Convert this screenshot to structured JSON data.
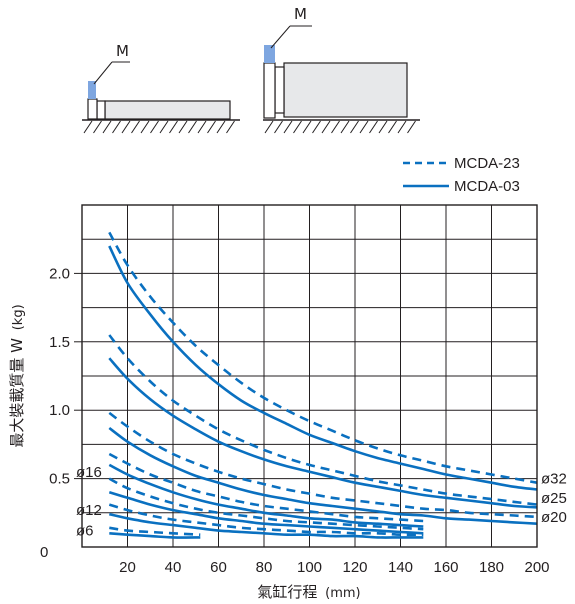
{
  "diagram": {
    "marker_label": "M",
    "colors": {
      "mass": "#7ea6e0",
      "body": "#e7e8ea",
      "outline": "#231f20"
    }
  },
  "chart_data": {
    "type": "line",
    "xlabel": "氣缸行程",
    "xlabel_unit": "(mm)",
    "ylabel": "最大裝載質量 W",
    "ylabel_unit": "(kg)",
    "xlim": [
      0,
      200
    ],
    "ylim": [
      0,
      2.5
    ],
    "x_ticks": [
      20,
      40,
      60,
      80,
      100,
      120,
      140,
      160,
      180,
      200
    ],
    "y_ticks": [
      {
        "value": 0,
        "label": "0"
      },
      {
        "value": 0.5,
        "label": "0.5"
      },
      {
        "value": 1.0,
        "label": "1.0"
      },
      {
        "value": 1.5,
        "label": "1.5"
      },
      {
        "value": 2.0,
        "label": "2.0"
      }
    ],
    "grid": true,
    "legend_position": "top-right",
    "legend": [
      {
        "label": "MCDA-23",
        "style": "dashed"
      },
      {
        "label": "MCDA-03",
        "style": "solid"
      }
    ],
    "line_color": "#0a70c0",
    "bore_labels": [
      {
        "label": "ø32",
        "side": "right",
        "y": 0.5
      },
      {
        "label": "ø25",
        "side": "right",
        "y": 0.36
      },
      {
        "label": "ø20",
        "side": "right",
        "y": 0.22
      },
      {
        "label": "ø16",
        "side": "left",
        "y": 0.55
      },
      {
        "label": "ø12",
        "side": "left",
        "y": 0.27
      },
      {
        "label": "ø6",
        "side": "left",
        "y": 0.12
      }
    ],
    "series": [
      {
        "style": "solid",
        "x": [
          12,
          20,
          30,
          40,
          50,
          60,
          70,
          80,
          90,
          100,
          110,
          120,
          130,
          140,
          150,
          160,
          170,
          180,
          190,
          200
        ],
        "y": [
          2.2,
          1.93,
          1.7,
          1.5,
          1.33,
          1.19,
          1.07,
          0.98,
          0.9,
          0.82,
          0.76,
          0.7,
          0.65,
          0.61,
          0.57,
          0.53,
          0.5,
          0.47,
          0.44,
          0.42
        ]
      },
      {
        "style": "dashed",
        "x": [
          12,
          20,
          30,
          40,
          50,
          60,
          70,
          80,
          90,
          100,
          110,
          120,
          130,
          140,
          150,
          160,
          170,
          180,
          190,
          200
        ],
        "y": [
          2.3,
          2.06,
          1.83,
          1.64,
          1.47,
          1.33,
          1.2,
          1.09,
          1.0,
          0.92,
          0.85,
          0.78,
          0.72,
          0.67,
          0.63,
          0.59,
          0.56,
          0.53,
          0.5,
          0.47
        ]
      },
      {
        "style": "solid",
        "x": [
          12,
          20,
          30,
          40,
          50,
          60,
          70,
          80,
          90,
          100,
          110,
          120,
          130,
          140,
          150,
          160,
          170,
          180,
          190,
          200
        ],
        "y": [
          1.38,
          1.23,
          1.08,
          0.96,
          0.86,
          0.77,
          0.7,
          0.64,
          0.59,
          0.55,
          0.51,
          0.47,
          0.44,
          0.41,
          0.38,
          0.36,
          0.34,
          0.32,
          0.3,
          0.29
        ]
      },
      {
        "style": "dashed",
        "x": [
          12,
          20,
          30,
          40,
          50,
          60,
          70,
          80,
          90,
          100,
          110,
          120,
          130,
          140,
          150,
          160,
          170,
          180,
          190,
          200
        ],
        "y": [
          1.55,
          1.38,
          1.21,
          1.07,
          0.96,
          0.86,
          0.78,
          0.71,
          0.65,
          0.6,
          0.56,
          0.52,
          0.48,
          0.45,
          0.42,
          0.39,
          0.37,
          0.35,
          0.33,
          0.31
        ]
      },
      {
        "style": "solid",
        "x": [
          12,
          20,
          30,
          40,
          50,
          60,
          70,
          80,
          90,
          100,
          110,
          120,
          130,
          140,
          150,
          160,
          170,
          180,
          190,
          200
        ],
        "y": [
          0.87,
          0.77,
          0.67,
          0.59,
          0.52,
          0.47,
          0.42,
          0.38,
          0.35,
          0.32,
          0.3,
          0.28,
          0.26,
          0.24,
          0.23,
          0.21,
          0.2,
          0.19,
          0.18,
          0.17
        ]
      },
      {
        "style": "dashed",
        "x": [
          12,
          20,
          30,
          40,
          50,
          60,
          70,
          80,
          90,
          100,
          110,
          120,
          130,
          140,
          150,
          160,
          170,
          180,
          190,
          200
        ],
        "y": [
          0.98,
          0.88,
          0.77,
          0.68,
          0.61,
          0.55,
          0.5,
          0.46,
          0.42,
          0.39,
          0.36,
          0.34,
          0.32,
          0.3,
          0.28,
          0.27,
          0.25,
          0.24,
          0.23,
          0.22
        ]
      },
      {
        "style": "solid",
        "x": [
          12,
          20,
          30,
          40,
          50,
          60,
          70,
          80,
          90,
          100,
          110,
          120,
          130,
          140,
          150
        ],
        "y": [
          0.6,
          0.53,
          0.46,
          0.4,
          0.35,
          0.31,
          0.28,
          0.25,
          0.23,
          0.21,
          0.2,
          0.18,
          0.17,
          0.16,
          0.15
        ]
      },
      {
        "style": "dashed",
        "x": [
          12,
          20,
          30,
          40,
          50,
          60,
          70,
          80,
          90,
          100,
          110,
          120,
          130,
          140,
          150
        ],
        "y": [
          0.68,
          0.61,
          0.53,
          0.47,
          0.41,
          0.37,
          0.33,
          0.3,
          0.28,
          0.26,
          0.24,
          0.22,
          0.21,
          0.2,
          0.19
        ]
      },
      {
        "style": "solid",
        "x": [
          12,
          20,
          30,
          40,
          50,
          60,
          70,
          80,
          90,
          100,
          110,
          120,
          130,
          140,
          150
        ],
        "y": [
          0.4,
          0.36,
          0.31,
          0.27,
          0.24,
          0.21,
          0.19,
          0.17,
          0.16,
          0.15,
          0.14,
          0.13,
          0.12,
          0.11,
          0.1
        ]
      },
      {
        "style": "dashed",
        "x": [
          12,
          20,
          30,
          40,
          50,
          60,
          70,
          80,
          90,
          100,
          110,
          120,
          130,
          140,
          150
        ],
        "y": [
          0.5,
          0.43,
          0.37,
          0.32,
          0.28,
          0.25,
          0.23,
          0.21,
          0.19,
          0.18,
          0.17,
          0.16,
          0.15,
          0.14,
          0.13
        ]
      },
      {
        "style": "solid",
        "x": [
          12,
          20,
          30,
          40,
          50,
          60,
          70,
          80,
          90,
          100,
          110,
          120,
          130,
          140,
          150
        ],
        "y": [
          0.24,
          0.21,
          0.18,
          0.16,
          0.14,
          0.12,
          0.11,
          0.1,
          0.09,
          0.09,
          0.08,
          0.08,
          0.07,
          0.07,
          0.07
        ]
      },
      {
        "style": "dashed",
        "x": [
          12,
          20,
          30,
          40,
          50,
          60,
          70,
          80,
          90,
          100,
          110,
          120,
          130,
          140,
          150
        ],
        "y": [
          0.31,
          0.27,
          0.23,
          0.2,
          0.18,
          0.16,
          0.14,
          0.13,
          0.12,
          0.11,
          0.11,
          0.1,
          0.1,
          0.09,
          0.09
        ]
      },
      {
        "style": "solid",
        "x": [
          12,
          20,
          30,
          40,
          52
        ],
        "y": [
          0.1,
          0.09,
          0.08,
          0.07,
          0.07
        ]
      },
      {
        "style": "dashed",
        "x": [
          12,
          20,
          30,
          40,
          52
        ],
        "y": [
          0.14,
          0.12,
          0.11,
          0.1,
          0.09
        ]
      }
    ]
  }
}
